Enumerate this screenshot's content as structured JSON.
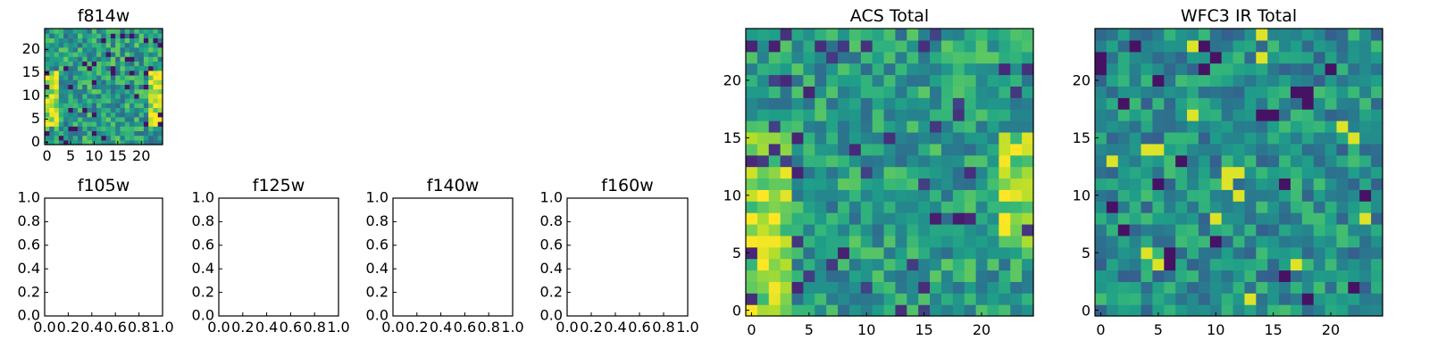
{
  "chart_data": [
    {
      "type": "heatmap",
      "title": "f814w",
      "grid_size": 25,
      "colormap": "viridis",
      "xlim": [
        -0.5,
        24.5
      ],
      "ylim": [
        -0.5,
        24.5
      ],
      "xticks": [
        0,
        5,
        10,
        15,
        20
      ],
      "yticks": [
        0,
        5,
        10,
        15,
        20
      ],
      "xtick_labels": [
        "0",
        "5",
        "10",
        "15",
        "20"
      ],
      "ytick_labels": [
        "0",
        "5",
        "10",
        "15",
        "20"
      ],
      "note_values": "noise field, brighter on left and right edges around rows 5-15"
    },
    {
      "type": "empty",
      "title": "f105w",
      "xlim": [
        0,
        1
      ],
      "ylim": [
        0,
        1
      ],
      "xtick_labels": [
        "0.0",
        "0.2",
        "0.4",
        "0.6",
        "0.8",
        "1.0"
      ],
      "ytick_labels": [
        "0.0",
        "0.2",
        "0.4",
        "0.6",
        "0.8",
        "1.0"
      ]
    },
    {
      "type": "empty",
      "title": "f125w",
      "xlim": [
        0,
        1
      ],
      "ylim": [
        0,
        1
      ],
      "xtick_labels": [
        "0.0",
        "0.2",
        "0.4",
        "0.6",
        "0.8",
        "1.0"
      ],
      "ytick_labels": [
        "0.0",
        "0.2",
        "0.4",
        "0.6",
        "0.8",
        "1.0"
      ]
    },
    {
      "type": "empty",
      "title": "f140w",
      "xlim": [
        0,
        1
      ],
      "ylim": [
        0,
        1
      ],
      "xtick_labels": [
        "0.0",
        "0.2",
        "0.4",
        "0.6",
        "0.8",
        "1.0"
      ],
      "ytick_labels": [
        "0.0",
        "0.2",
        "0.4",
        "0.6",
        "0.8",
        "1.0"
      ]
    },
    {
      "type": "empty",
      "title": "f160w",
      "xlim": [
        0,
        1
      ],
      "ylim": [
        0,
        1
      ],
      "xtick_labels": [
        "0.0",
        "0.2",
        "0.4",
        "0.6",
        "0.8",
        "1.0"
      ],
      "ytick_labels": [
        "0.0",
        "0.2",
        "0.4",
        "0.6",
        "0.8",
        "1.0"
      ]
    },
    {
      "type": "heatmap",
      "title": "ACS Total",
      "grid_size": 25,
      "colormap": "viridis",
      "xlim": [
        -0.5,
        24.5
      ],
      "ylim": [
        -0.5,
        24.5
      ],
      "xticks": [
        0,
        5,
        10,
        15,
        20
      ],
      "yticks": [
        0,
        5,
        10,
        15,
        20
      ],
      "xtick_labels": [
        "0",
        "5",
        "10",
        "15",
        "20"
      ],
      "ytick_labels": [
        "0",
        "5",
        "10",
        "15",
        "20"
      ]
    },
    {
      "type": "heatmap",
      "title": "WFC3 IR Total",
      "grid_size": 25,
      "colormap": "viridis",
      "xlim": [
        -0.5,
        24.5
      ],
      "ylim": [
        -0.5,
        24.5
      ],
      "xticks": [
        0,
        5,
        10,
        15,
        20
      ],
      "yticks": [
        0,
        5,
        10,
        15,
        20
      ],
      "xtick_labels": [
        "0",
        "5",
        "10",
        "15",
        "20"
      ],
      "ytick_labels": [
        "0",
        "5",
        "10",
        "15",
        "20"
      ]
    }
  ]
}
